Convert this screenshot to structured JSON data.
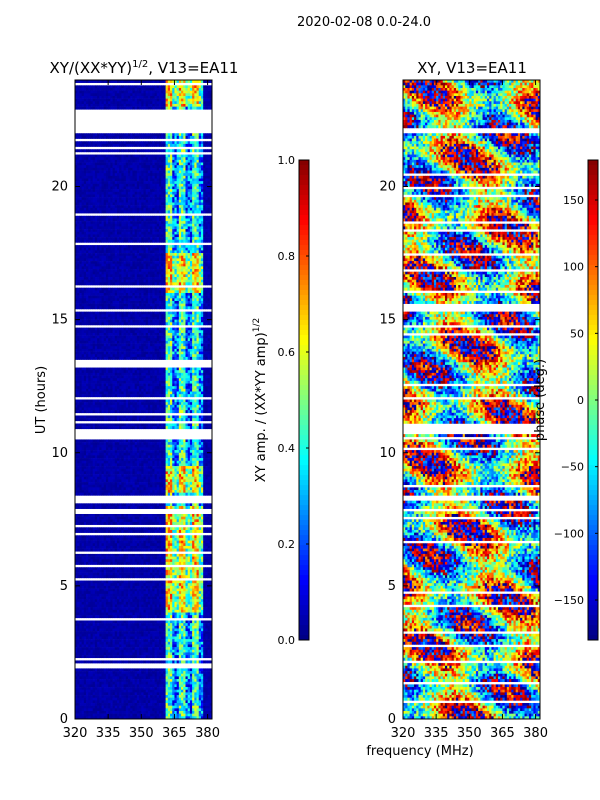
{
  "suptitle": "2020-02-08 0.0-24.0",
  "chart_data": [
    {
      "type": "heatmap",
      "title_main": "XY/(XX*YY)",
      "title_sup": "1/2",
      "title_tail": ", V13=EA11",
      "xlabel": "",
      "ylabel": "UT (hours)",
      "xlim": [
        320,
        382
      ],
      "ylim": [
        0,
        24
      ],
      "xticks": [
        320,
        335,
        350,
        365,
        380
      ],
      "yticks": [
        0,
        5,
        10,
        15,
        20
      ],
      "colorbar": {
        "label_main": "XY amp. / (XX*YY amp)",
        "label_sup": "1/2",
        "range": [
          0.0,
          1.0
        ],
        "ticks": [
          "0.0",
          "0.2",
          "0.4",
          "0.6",
          "0.8",
          "1.0"
        ],
        "tick_values": [
          0.0,
          0.2,
          0.4,
          0.6,
          0.8,
          1.0
        ]
      },
      "active_band_mhz": [
        361,
        378
      ],
      "gap_bands_ut": [
        [
          22.0,
          22.8
        ],
        [
          13.2,
          13.5
        ],
        [
          10.6,
          10.9
        ],
        [
          8.1,
          8.4
        ],
        [
          7.7,
          7.9
        ],
        [
          1.9,
          2.1
        ]
      ]
    },
    {
      "type": "heatmap",
      "title_main": "XY, V13=EA11",
      "xlabel": "frequency (MHz)",
      "ylabel": "",
      "xlim": [
        320,
        382
      ],
      "ylim": [
        0,
        24
      ],
      "xticks": [
        320,
        335,
        350,
        365,
        380
      ],
      "yticks": [
        0,
        5,
        10,
        15,
        20
      ],
      "colorbar": {
        "label_main": "phase (deg.)",
        "range": [
          -180,
          180
        ],
        "ticks": [
          "−150",
          "−100",
          "−50",
          "0",
          "50",
          "100",
          "150"
        ],
        "tick_values": [
          -150,
          -100,
          -50,
          0,
          50,
          100,
          150
        ]
      },
      "gap_bands_ut": [
        [
          22.0,
          22.2
        ],
        [
          15.3,
          15.5
        ],
        [
          10.8,
          11.0
        ],
        [
          8.2,
          8.4
        ],
        [
          4.2,
          4.3
        ]
      ]
    }
  ]
}
